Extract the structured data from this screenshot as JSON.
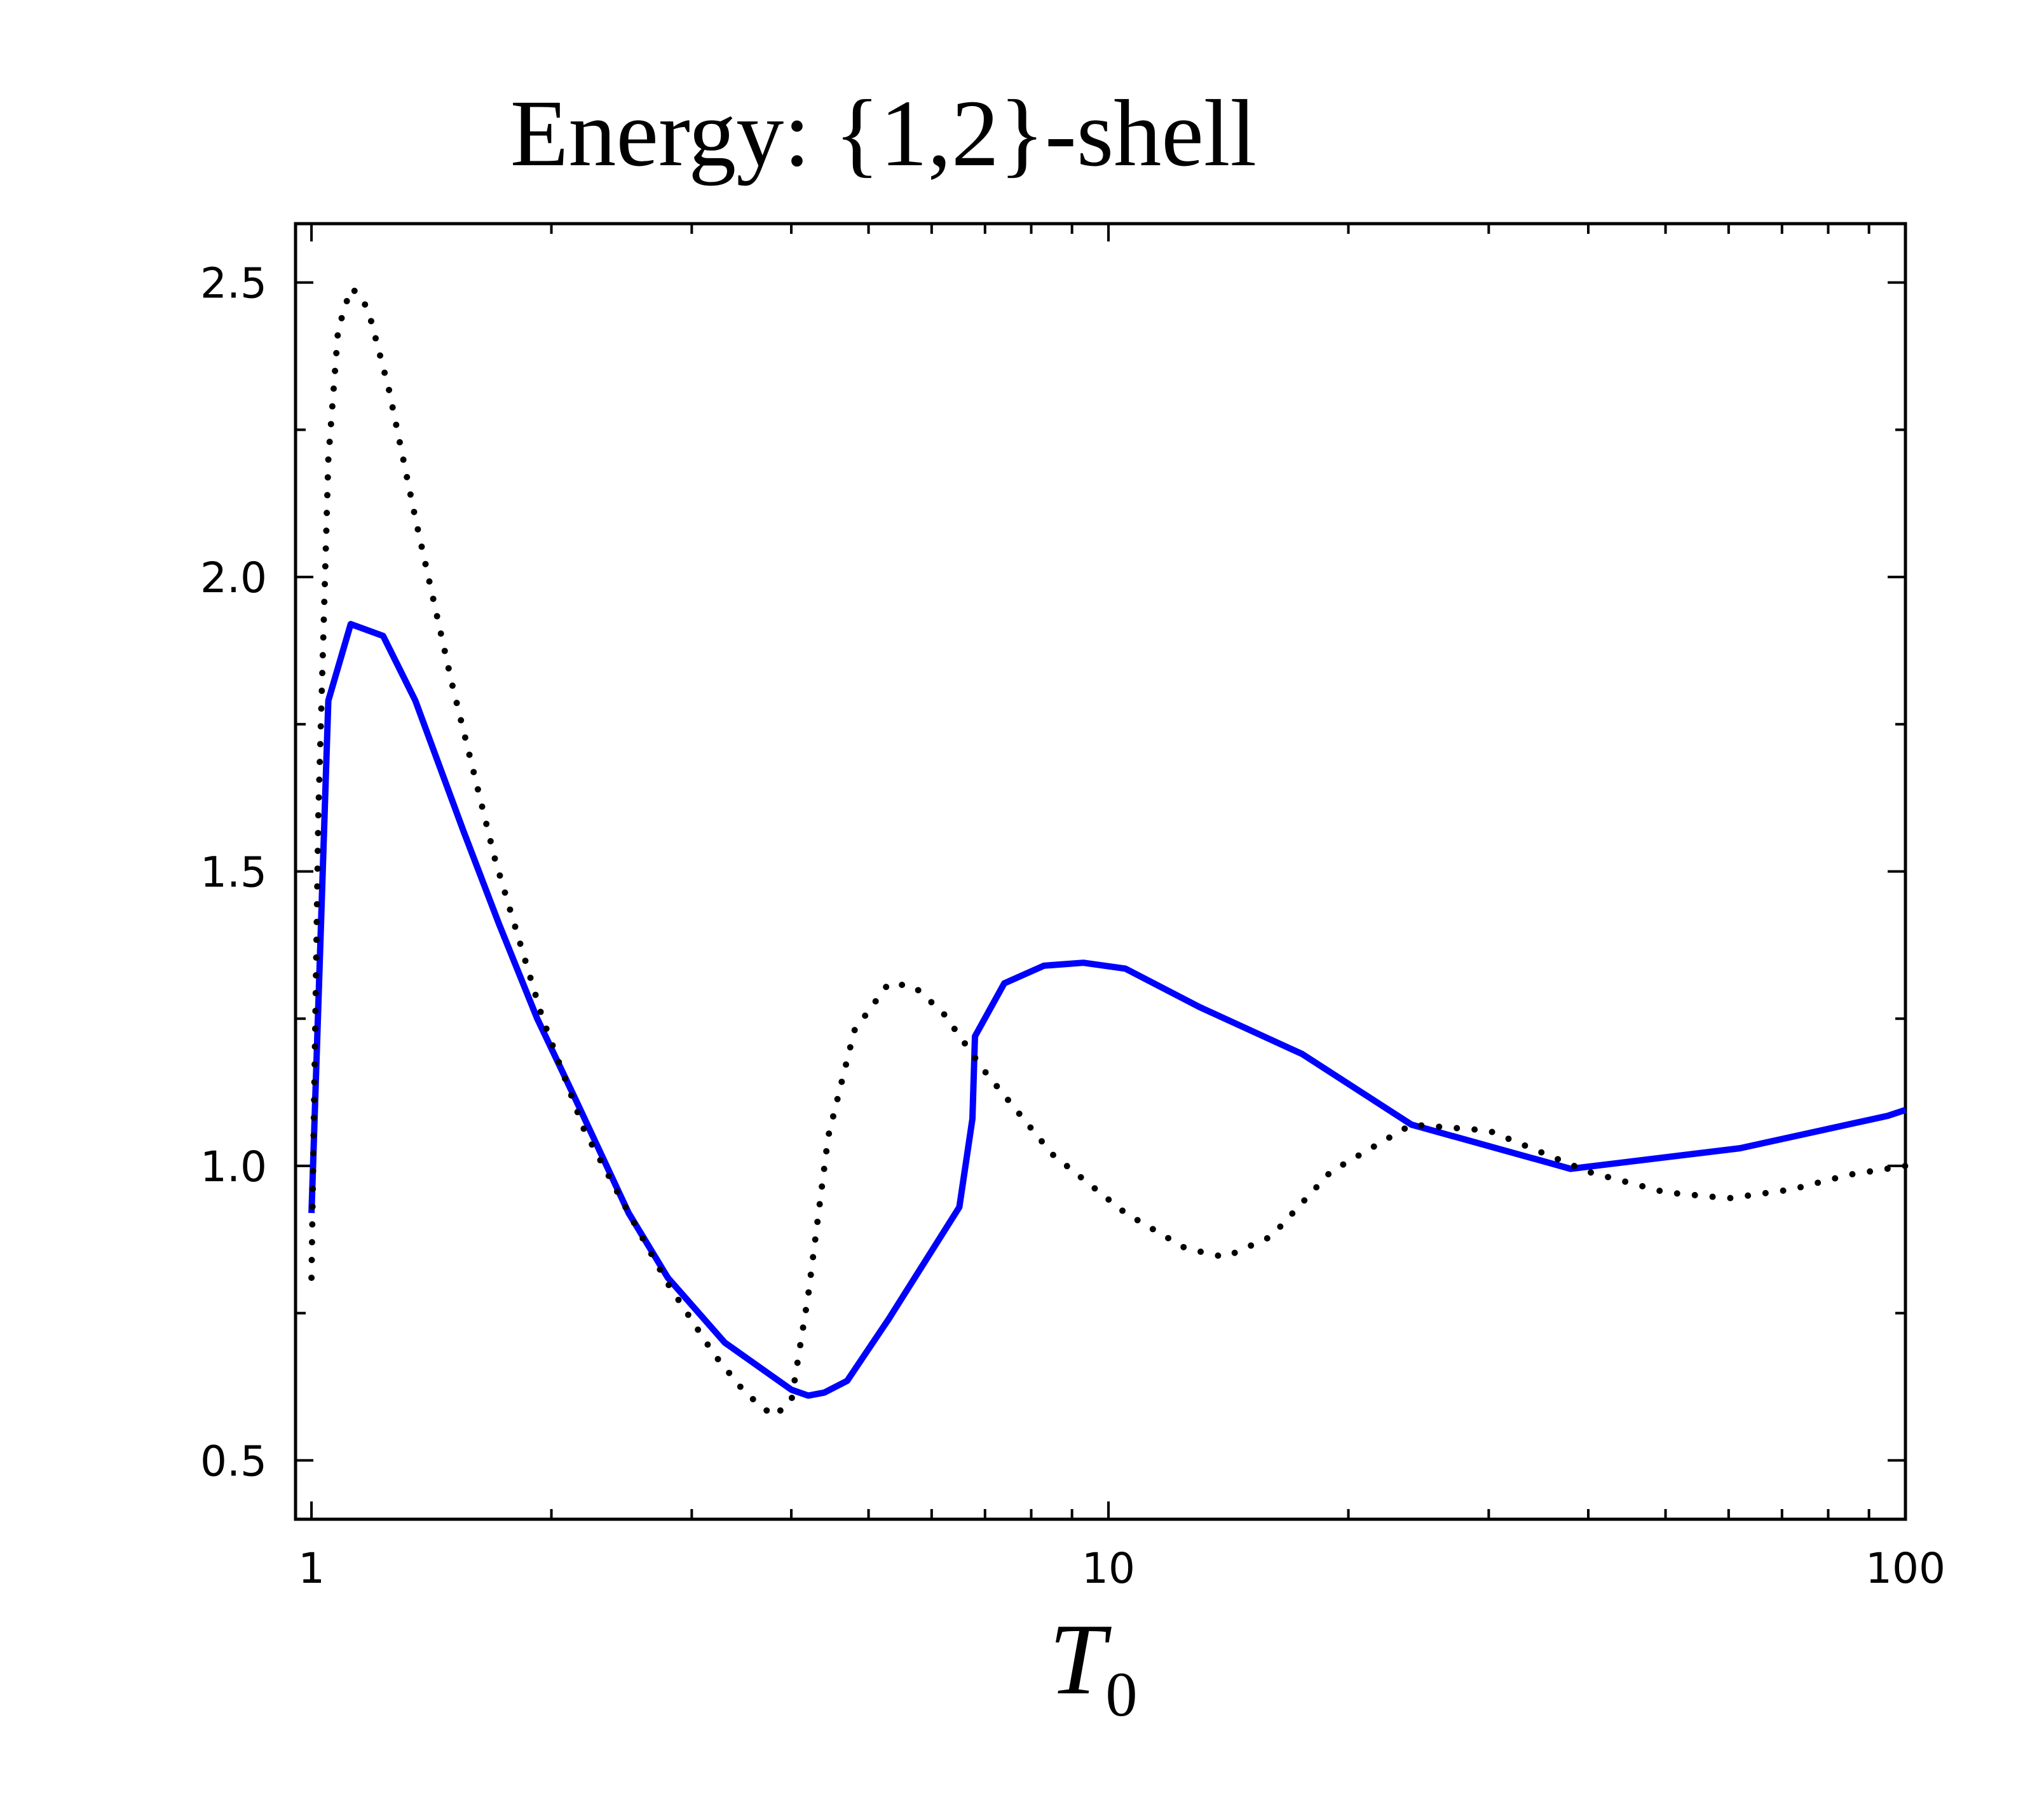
{
  "chart_data": {
    "type": "line",
    "title": "Energy:  {1,2}-shell",
    "xlabel": "T",
    "xlabel_subscript": "0",
    "xscale": "log",
    "xlim": [
      0.955,
      100
    ],
    "ylim": [
      0.4,
      2.6
    ],
    "grid": false,
    "legend": "none",
    "x_ticks": [
      1,
      10,
      100
    ],
    "x_tick_labels": [
      "1",
      "10",
      "100"
    ],
    "y_ticks": [
      0.5,
      1.0,
      1.5,
      2.0,
      2.5
    ],
    "y_tick_labels": [
      "0.5",
      "1.0",
      "1.5",
      "2.0",
      "2.5"
    ],
    "series": [
      {
        "style": "solid",
        "color": "#0000ff",
        "x": [
          1.0,
          1.05,
          1.12,
          1.23,
          1.35,
          1.55,
          1.72,
          1.92,
          2.15,
          2.5,
          2.8,
          3.3,
          4.0,
          4.2,
          4.4,
          4.7,
          5.3,
          6.5,
          6.75,
          6.8,
          7.4,
          8.3,
          9.3,
          10.5,
          13.0,
          17.5,
          24.0,
          38.0,
          62.0,
          95.0,
          100.0
        ],
        "y": [
          0.92,
          1.79,
          1.92,
          1.9,
          1.79,
          1.57,
          1.41,
          1.25,
          1.11,
          0.92,
          0.81,
          0.7,
          0.62,
          0.61,
          0.615,
          0.635,
          0.74,
          0.93,
          1.08,
          1.22,
          1.31,
          1.34,
          1.345,
          1.335,
          1.27,
          1.19,
          1.07,
          0.995,
          1.03,
          1.085,
          1.095
        ]
      },
      {
        "style": "dotted",
        "color": "#000000",
        "x": [
          1.0,
          1.02,
          1.05,
          1.08,
          1.12,
          1.15,
          1.18,
          1.25,
          1.35,
          1.5,
          1.7,
          1.95,
          2.2,
          2.5,
          2.8,
          3.2,
          3.5,
          3.8,
          4.0,
          4.2,
          4.45,
          4.8,
          5.3,
          5.7,
          6.2,
          7.0,
          8.5,
          10.5,
          12.5,
          14.0,
          16.0,
          19.0,
          24.0,
          30.0,
          40.0,
          50.0,
          60.0,
          72.0,
          85.0,
          100.0
        ],
        "y": [
          0.81,
          1.6,
          2.2,
          2.42,
          2.49,
          2.48,
          2.45,
          2.32,
          2.1,
          1.82,
          1.52,
          1.25,
          1.06,
          0.92,
          0.8,
          0.68,
          0.615,
          0.575,
          0.6,
          0.78,
          1.05,
          1.23,
          1.31,
          1.305,
          1.26,
          1.16,
          1.02,
          0.92,
          0.86,
          0.845,
          0.88,
          0.99,
          1.07,
          1.06,
          0.99,
          0.955,
          0.945,
          0.96,
          0.985,
          1.0
        ]
      }
    ]
  }
}
